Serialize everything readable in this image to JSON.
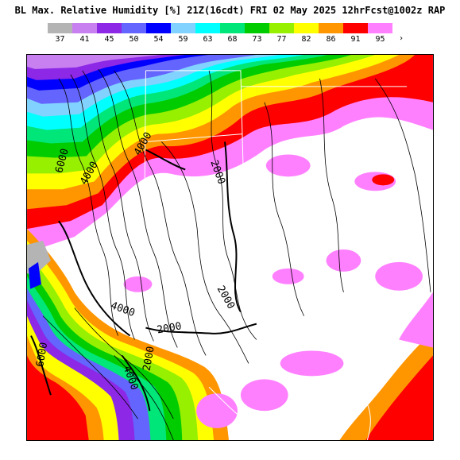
{
  "title": "BL Max. Relative Humidity [%] 21Z(16cdt) FRI 02 May 2025 12hrFcst@1002z RAP",
  "legend": {
    "levels": [
      "37",
      "41",
      "45",
      "50",
      "54",
      "59",
      "63",
      "68",
      "73",
      "77",
      "82",
      "86",
      "91",
      "95"
    ],
    "colors": [
      "#b4b4b4",
      "#c880f0",
      "#8c28e6",
      "#6464ff",
      "#0000ff",
      "#82d2ff",
      "#00ffff",
      "#00e678",
      "#00cc00",
      "#96f000",
      "#ffff00",
      "#ff9600",
      "#ff0000",
      "#ff80ff"
    ],
    "more_marker": "›"
  },
  "map": {
    "contour_labels": [
      "6000",
      "4000",
      "4000",
      "2000",
      "2000",
      "2000",
      "4000",
      "2000",
      "6000",
      "4000"
    ]
  }
}
